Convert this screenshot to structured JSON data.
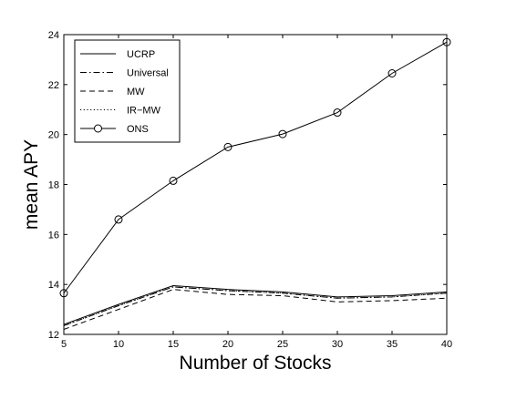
{
  "chart_data": {
    "type": "line",
    "title": "",
    "xlabel": "Number of Stocks",
    "ylabel": "mean APY",
    "x": [
      5,
      10,
      15,
      20,
      25,
      30,
      35,
      40
    ],
    "xlim": [
      5,
      40
    ],
    "ylim": [
      12,
      24
    ],
    "xticks": [
      "5",
      "10",
      "15",
      "20",
      "25",
      "30",
      "35",
      "40"
    ],
    "yticks": [
      "12",
      "14",
      "16",
      "18",
      "20",
      "22",
      "24"
    ],
    "grid": false,
    "legend_position": "top-left",
    "series": [
      {
        "name": "UCRP",
        "style": "solid",
        "marker": "none",
        "values": [
          12.4,
          13.2,
          13.95,
          13.8,
          13.7,
          13.5,
          13.55,
          13.7
        ]
      },
      {
        "name": "Universal",
        "style": "dashdot",
        "marker": "none",
        "values": [
          12.35,
          13.15,
          13.9,
          13.75,
          13.65,
          13.45,
          13.5,
          13.65
        ]
      },
      {
        "name": "MW",
        "style": "dashed",
        "marker": "none",
        "values": [
          12.2,
          13.0,
          13.8,
          13.6,
          13.55,
          13.3,
          13.35,
          13.45
        ]
      },
      {
        "name": "IR−MW",
        "style": "dotted",
        "marker": "none",
        "values": [
          12.35,
          13.15,
          13.9,
          13.75,
          13.65,
          13.45,
          13.5,
          13.65
        ]
      },
      {
        "name": "ONS",
        "style": "solid",
        "marker": "circle",
        "values": [
          13.65,
          16.6,
          18.15,
          19.5,
          20.02,
          20.88,
          22.45,
          23.7
        ]
      }
    ],
    "colors": {
      "line": "#000000",
      "background": "#ffffff"
    }
  }
}
